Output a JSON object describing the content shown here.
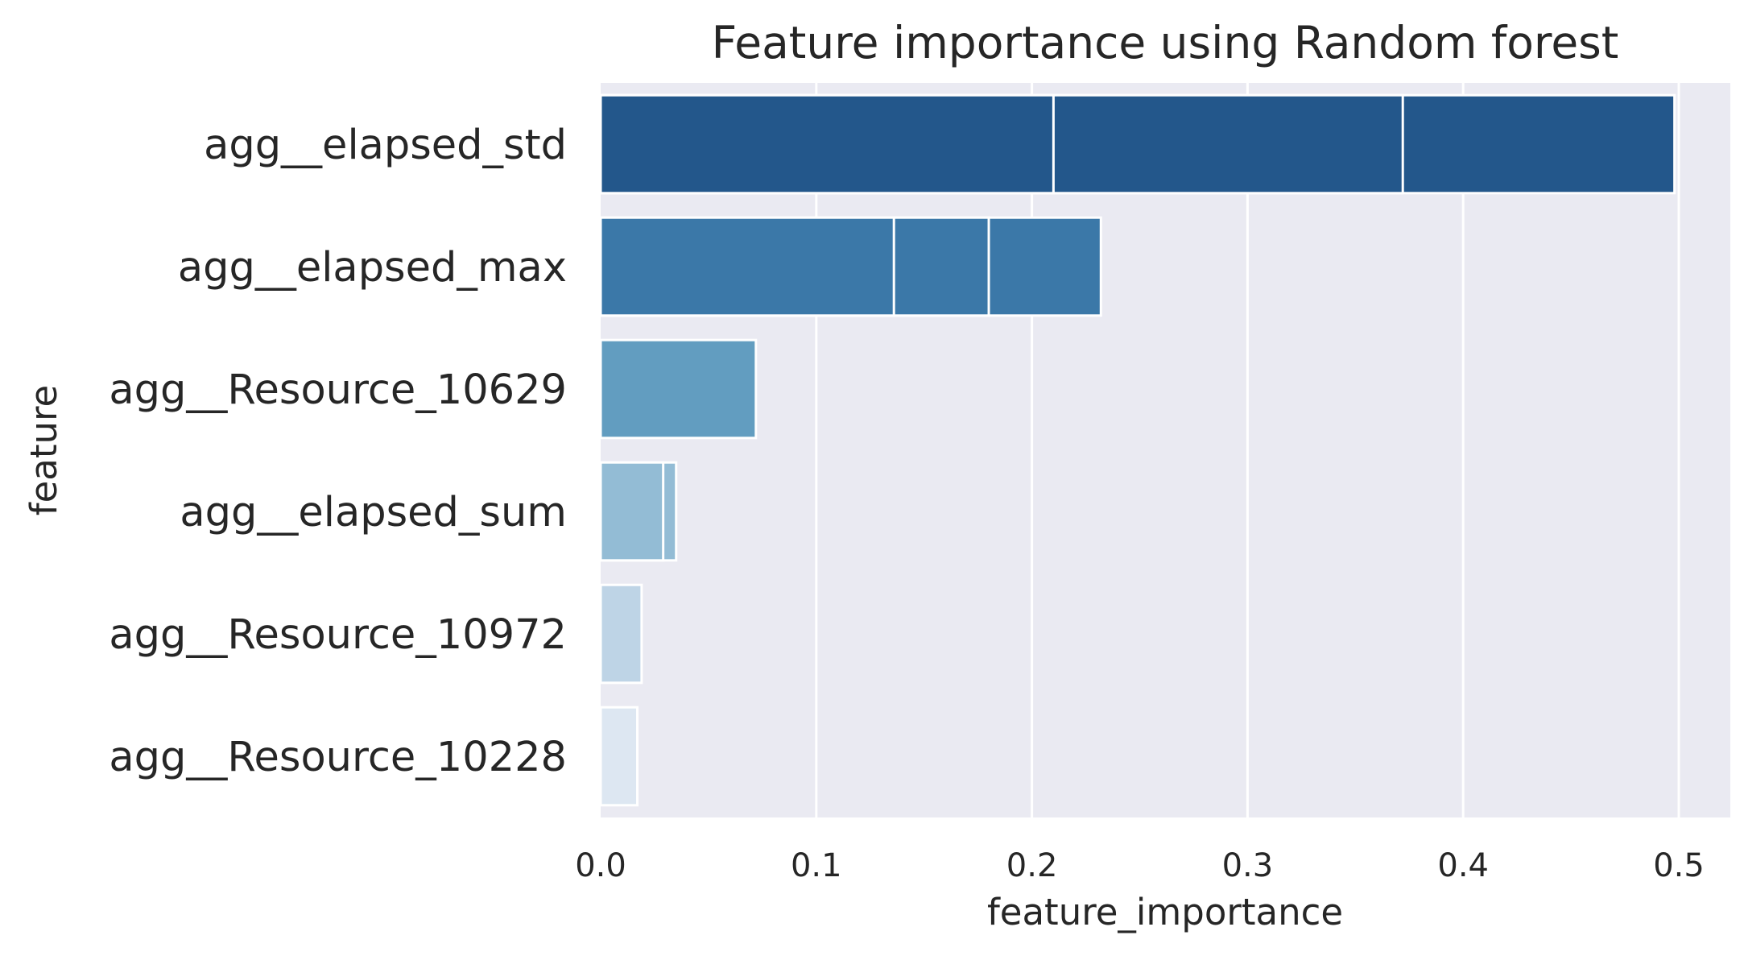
{
  "chart_data": {
    "type": "bar",
    "orientation": "horizontal",
    "title": "Feature importance using Random forest",
    "xlabel": "feature_importance",
    "ylabel": "feature",
    "xlim": [
      0,
      0.52
    ],
    "xticks": [
      0.0,
      0.1,
      0.2,
      0.3,
      0.4,
      0.5
    ],
    "xtick_labels": [
      "0.0",
      "0.1",
      "0.2",
      "0.3",
      "0.4",
      "0.5"
    ],
    "grid": true,
    "background": "#eaeaf2",
    "categories": [
      "agg__elapsed_std",
      "agg__elapsed_max",
      "agg__Resource_10629",
      "agg__elapsed_sum",
      "agg__Resource_10972",
      "agg__Resource_10228"
    ],
    "values": [
      [
        0.21,
        0.372,
        0.498
      ],
      [
        0.136,
        0.18,
        0.232
      ],
      [
        0.072
      ],
      [
        0.029,
        0.035
      ],
      [
        0.019
      ],
      [
        0.017
      ]
    ],
    "colors": [
      "#23578b",
      "#3b78a8",
      "#629dc0",
      "#93bcd5",
      "#bed4e6",
      "#dde7f2"
    ]
  }
}
